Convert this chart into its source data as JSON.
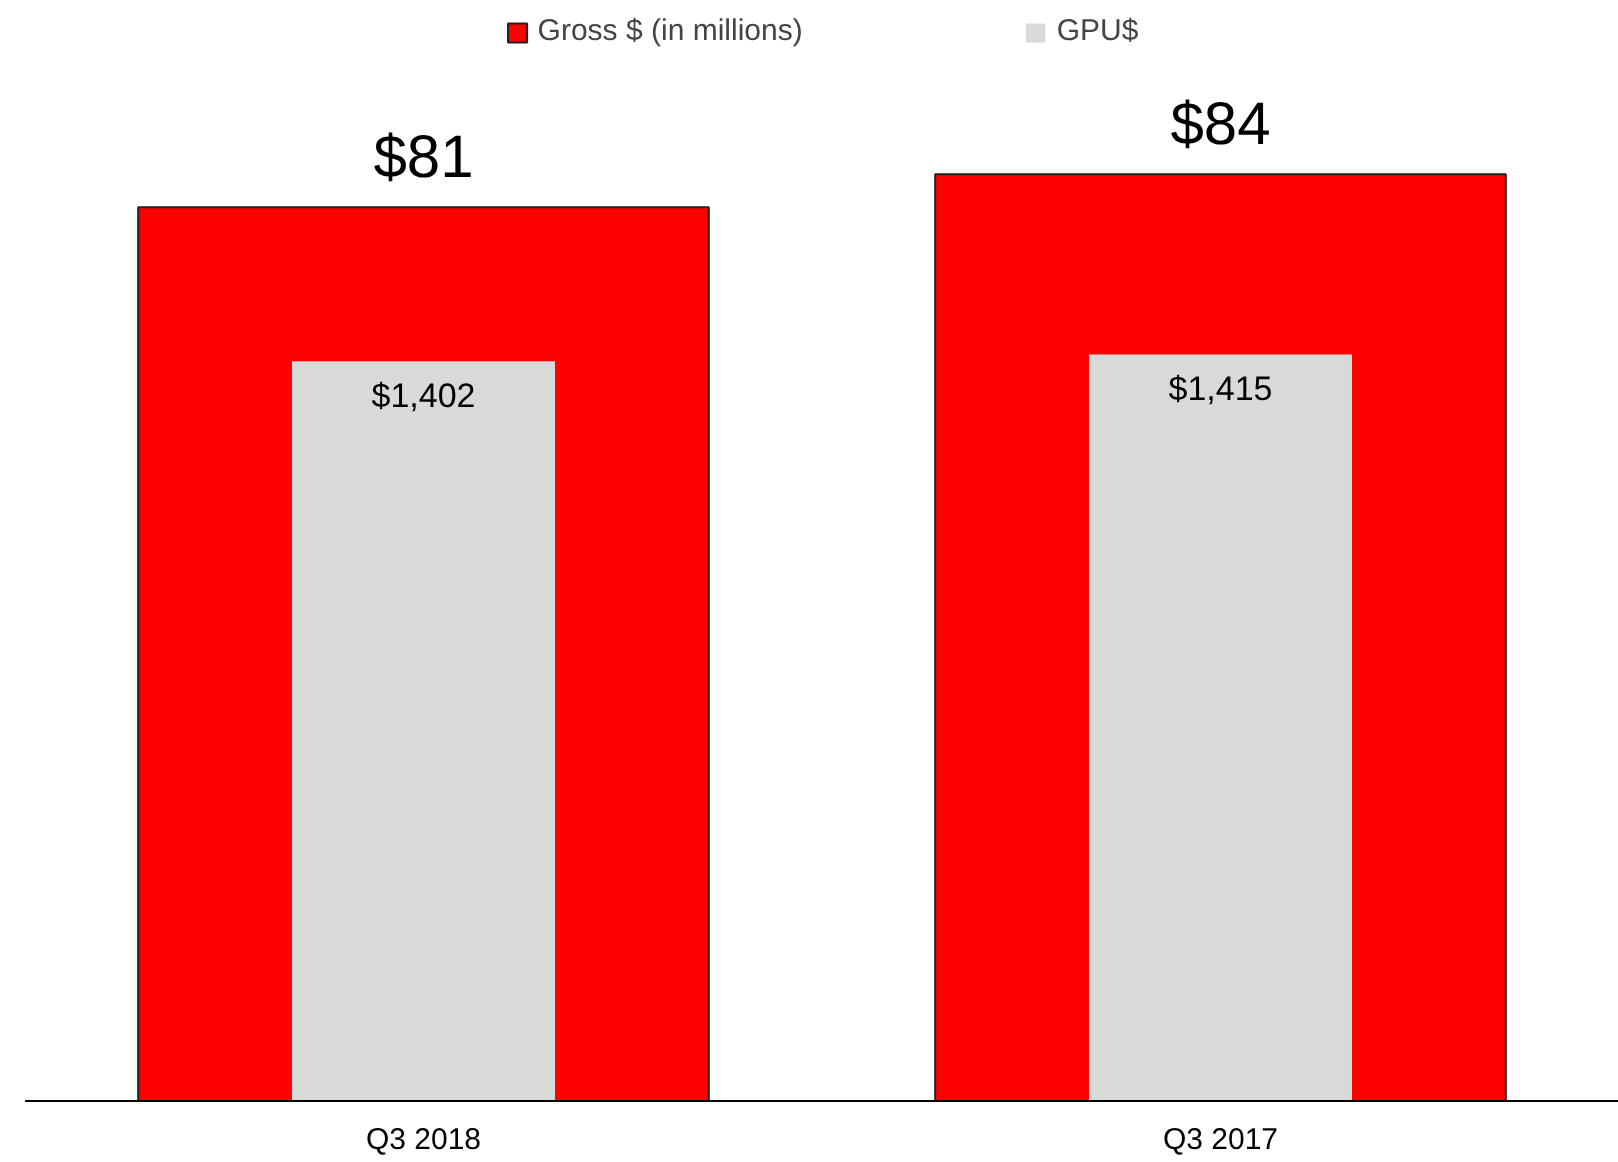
{
  "chart_data": {
    "type": "bar",
    "categories": [
      "Q3 2018",
      "Q3 2017"
    ],
    "legend": "top",
    "tick_labels": "x",
    "series": [
      {
        "name": "Gross $ (in millions)",
        "color": "#ff0000",
        "values": [
          81,
          84
        ],
        "value_labels": [
          "$81",
          "$84"
        ]
      },
      {
        "name": "GPU$",
        "color": "#d9d9d9",
        "values": [
          1402,
          1415
        ],
        "value_labels": [
          "$1,402",
          "$1,415"
        ],
        "axis": "y2"
      }
    ]
  }
}
